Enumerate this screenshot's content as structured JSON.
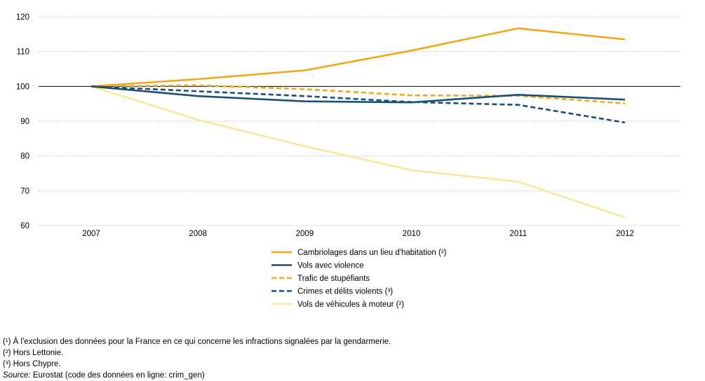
{
  "chart_data": {
    "type": "line",
    "x": [
      "2007",
      "2008",
      "2009",
      "2010",
      "2011",
      "2012"
    ],
    "ylim": [
      60,
      120
    ],
    "yticks": [
      60,
      70,
      80,
      90,
      100,
      110,
      120
    ],
    "grid": "horizontal dashed",
    "legend_position": "bottom-center",
    "series": [
      {
        "name": "Cambriolages dans un lieu d'habitation (²)",
        "color": "#F0A81A",
        "dashed": false,
        "values": [
          100,
          102.1,
          104.6,
          110.3,
          116.7,
          113.5
        ]
      },
      {
        "name": "Vols avec violence",
        "color": "#1B4F72",
        "dashed": false,
        "values": [
          100,
          97.2,
          95.7,
          95.4,
          97.6,
          96.2
        ]
      },
      {
        "name": "Trafic de stupéfiants",
        "color": "#F0A81A",
        "dashed": true,
        "values": [
          100,
          100.3,
          99.2,
          97.4,
          97.3,
          95.1
        ]
      },
      {
        "name": "Crimes et délits violents (³)",
        "color": "#1B4F72",
        "dashed": true,
        "values": [
          100,
          98.6,
          97.2,
          95.5,
          94.7,
          89.6
        ]
      },
      {
        "name": "Vols de véhicules à moteur (²)",
        "color": "#F8E99A",
        "dashed": false,
        "values": [
          100,
          90.4,
          82.8,
          75.9,
          72.6,
          62.3
        ]
      }
    ]
  },
  "footnotes": {
    "note1": "(¹) À l'exclusion des données pour la France en ce qui concerne les infractions signalées par la gendarmerie.",
    "note2": "(²) Hors Lettonie.",
    "note3": "(³) Hors Chypre.",
    "source_label": "Source:",
    "source_text": " Eurostat (code des données en ligne: crim_gen)"
  }
}
